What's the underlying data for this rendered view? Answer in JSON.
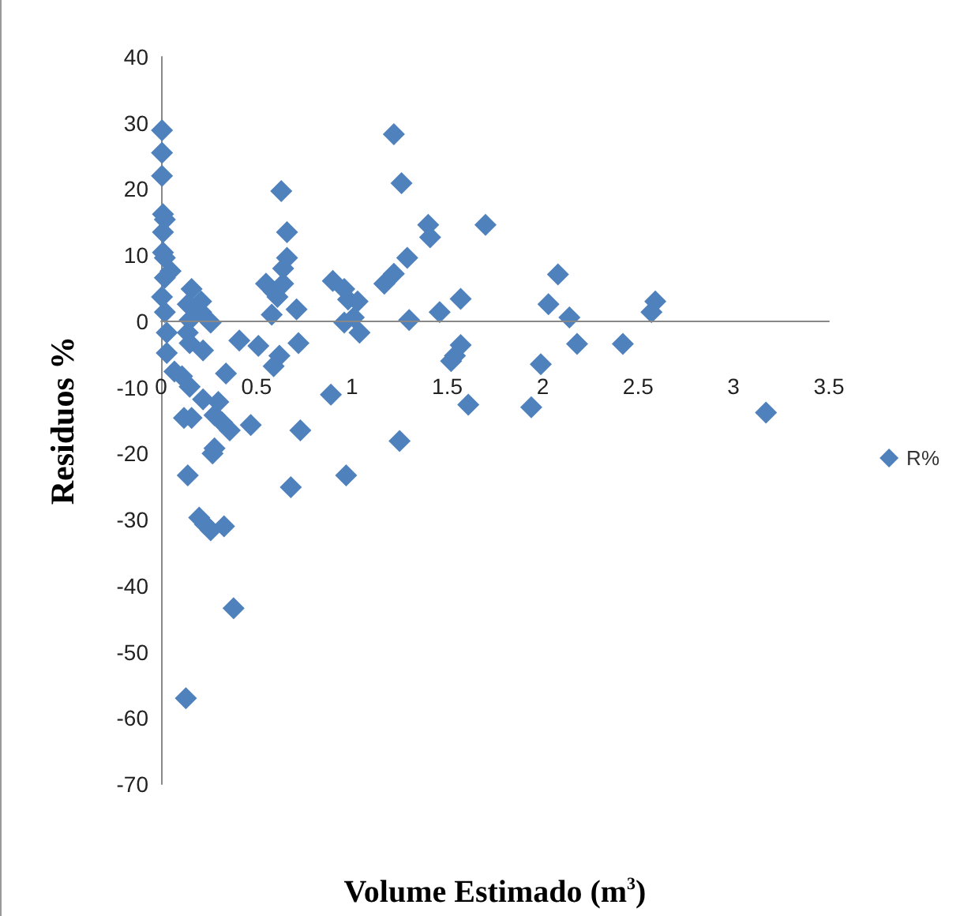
{
  "chart_data": {
    "type": "scatter",
    "xlabel": "Volume Estimado (m$^{3}$)",
    "ylabel": "Residuos %",
    "xlim": [
      0,
      3.5
    ],
    "xticks": [
      0,
      0.5,
      1,
      1.5,
      2,
      2.5,
      3,
      3.5
    ],
    "ylim": [
      -70,
      40
    ],
    "yticks": [
      -70,
      -60,
      -50,
      -40,
      -30,
      -20,
      -10,
      0,
      10,
      20,
      30,
      40
    ],
    "grid": false,
    "legend": "right",
    "marker": "diamond",
    "series": [
      {
        "name": "R%",
        "color": "#4f81bd",
        "x": [
          0.005,
          0.005,
          0.005,
          0.01,
          0.02,
          0.01,
          0.01,
          0.02,
          0.05,
          0.02,
          0.005,
          0.02,
          0.03,
          0.03,
          0.07,
          0.11,
          0.15,
          0.16,
          0.14,
          0.21,
          0.15,
          0.21,
          0.26,
          0.14,
          0.15,
          0.22,
          0.41,
          0.51,
          0.34,
          0.55,
          0.59,
          0.64,
          0.61,
          0.58,
          0.63,
          0.66,
          0.66,
          0.64,
          0.71,
          0.72,
          0.62,
          0.59,
          0.89,
          0.9,
          0.96,
          0.98,
          1.03,
          0.96,
          1.01,
          1.04,
          1.22,
          1.26,
          1.29,
          1.3,
          1.17,
          1.22,
          1.25,
          0.73,
          0.47,
          0.12,
          0.16,
          0.22,
          0.28,
          0.3,
          0.32,
          0.36,
          0.28,
          0.14,
          0.2,
          0.26,
          0.33,
          0.23,
          0.38,
          0.13,
          0.68,
          0.97,
          0.27,
          1.4,
          1.41,
          1.7,
          1.46,
          1.57,
          1.57,
          1.54,
          1.52,
          1.61,
          2.03,
          2.08,
          2.14,
          2.18,
          2.42,
          1.99,
          1.94,
          2.57,
          2.59,
          3.17
        ],
        "values": [
          28.9,
          25.5,
          22,
          16.2,
          15.4,
          13.5,
          10.4,
          9.6,
          7.6,
          6.6,
          3.7,
          1.4,
          -1.7,
          -4.8,
          -7.6,
          -8.3,
          -9.9,
          4.9,
          2.6,
          3,
          0.2,
          1.4,
          -0.2,
          -1.7,
          -3.3,
          -4.4,
          -2.9,
          -3.7,
          -7.9,
          5.7,
          4.5,
          5.7,
          3.7,
          1,
          19.7,
          13.5,
          9.6,
          8,
          1.8,
          -3.3,
          -5.2,
          -6.8,
          -11.1,
          6.1,
          4.9,
          3.3,
          3,
          -0.2,
          0.6,
          -1.7,
          28.3,
          20.9,
          9.6,
          0.2,
          5.7,
          7.2,
          -18.1,
          -16.5,
          -15.7,
          -14.6,
          -14.6,
          -11.8,
          -14.2,
          -12.2,
          -15.3,
          -16.5,
          -19.2,
          -23.3,
          -29.7,
          -31.6,
          -31,
          -30.7,
          -43.4,
          -57,
          -25.1,
          -23.3,
          -20,
          14.6,
          12.7,
          14.6,
          1.4,
          3.4,
          -3.6,
          -5.2,
          -6,
          -12.6,
          2.6,
          7.1,
          0.6,
          -3.4,
          -3.4,
          -6.5,
          -13,
          1.4,
          3,
          -13.8
        ]
      }
    ]
  }
}
